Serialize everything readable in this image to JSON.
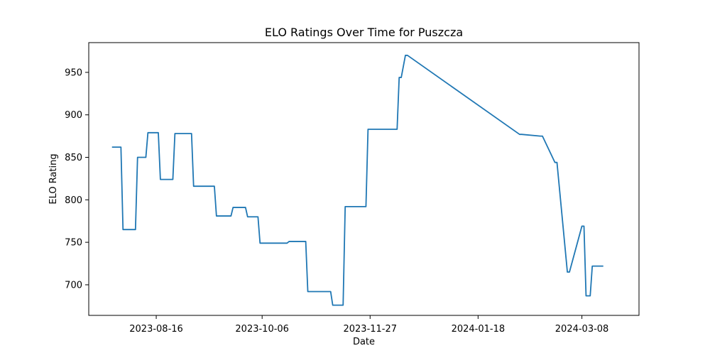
{
  "chart_data": {
    "type": "line",
    "title": "ELO Ratings Over Time for Puszcza",
    "xlabel": "Date",
    "ylabel": "ELO Rating",
    "x_tick_labels": [
      "2023-08-16",
      "2023-10-06",
      "2023-11-27",
      "2024-01-18",
      "2024-03-08"
    ],
    "x_tick_days": [
      0,
      51,
      103,
      155,
      205
    ],
    "y_ticks": [
      700,
      750,
      800,
      850,
      900,
      950
    ],
    "xlim_days": [
      -32.5,
      232.5
    ],
    "ylim": [
      664,
      985
    ],
    "grid": false,
    "legend": "none",
    "line_color": "#1f77b4",
    "series": [
      {
        "name": "Puszcza",
        "x_days": [
          -21,
          -17,
          -16,
          -10,
          -9,
          -5,
          -4,
          1,
          2,
          8,
          9,
          17,
          18,
          28,
          29,
          36,
          37,
          43,
          44,
          49,
          50,
          63,
          64,
          72,
          73,
          84,
          85,
          90,
          91,
          101,
          102,
          116,
          117,
          118,
          120,
          121,
          175,
          176,
          185,
          186,
          192,
          193,
          198,
          199,
          205,
          206,
          207,
          209,
          210,
          215
        ],
        "y": [
          862,
          862,
          765,
          765,
          850,
          850,
          879,
          879,
          824,
          824,
          878,
          878,
          816,
          816,
          781,
          781,
          791,
          791,
          780,
          780,
          749,
          749,
          751,
          751,
          692,
          692,
          676,
          676,
          792,
          792,
          883,
          883,
          944,
          944,
          970,
          970,
          877,
          877,
          875,
          875,
          844,
          844,
          715,
          715,
          769,
          769,
          687,
          687,
          722,
          722
        ]
      }
    ]
  }
}
